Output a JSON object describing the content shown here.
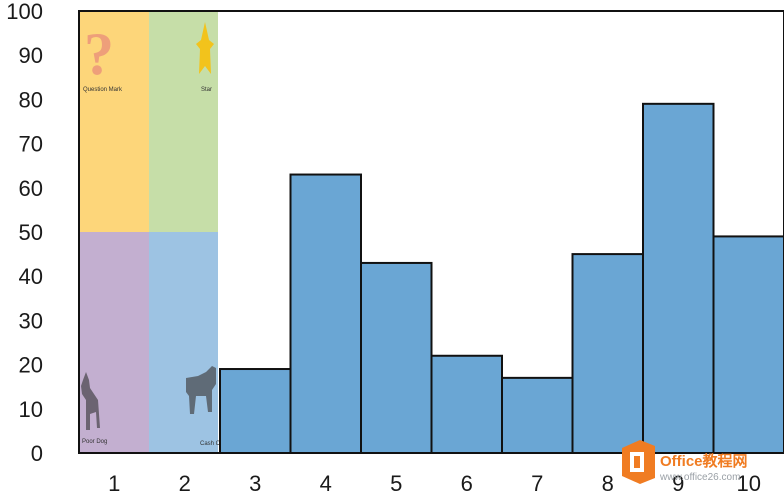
{
  "chart_data": {
    "type": "bar",
    "categories": [
      "1",
      "2",
      "3",
      "4",
      "5",
      "6",
      "7",
      "8",
      "9",
      "10"
    ],
    "values": [
      null,
      null,
      19,
      63,
      43,
      22,
      17,
      45,
      79,
      49
    ],
    "ylim": [
      0,
      100
    ],
    "yticks": [
      "0",
      "10",
      "20",
      "30",
      "40",
      "50",
      "60",
      "70",
      "80",
      "90",
      "100"
    ],
    "bar_color": "#6aa6d4",
    "bar_border_color": "#111111",
    "title": "",
    "xlabel": "",
    "ylabel": "",
    "grid": false,
    "legend": {
      "placement": "top-left",
      "items": [
        {
          "label": "Question Mark",
          "color": "#fdd67a",
          "icon": "question-mark-icon"
        },
        {
          "label": "Star",
          "color": "#c6dea8",
          "icon": "star-icon"
        },
        {
          "label": "Poor Dog",
          "color": "#c3afd0",
          "icon": "dog-icon"
        },
        {
          "label": "Cash Cow",
          "color": "#9dc3e3",
          "icon": "cow-icon"
        }
      ]
    }
  },
  "watermark": {
    "brand": "Office教程网",
    "url": "www.office26.com",
    "color": "#f07c22",
    "icon": "office-logo-icon"
  }
}
